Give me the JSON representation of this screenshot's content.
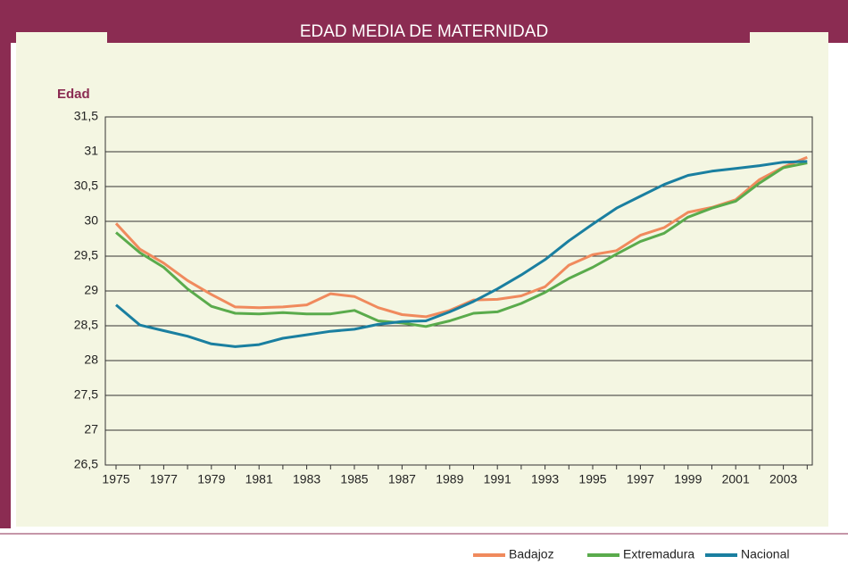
{
  "chart_data": {
    "type": "line",
    "title": "EDAD MEDIA DE MATERNIDAD",
    "y_label": "Edad",
    "categories": [
      "1975",
      null,
      "1977",
      null,
      "1979",
      null,
      "1981",
      null,
      "1983",
      null,
      "1985",
      null,
      "1987",
      null,
      "1989",
      null,
      "1991",
      null,
      "1993",
      null,
      "1995",
      null,
      "1997",
      null,
      "1999",
      null,
      "2001",
      null,
      "2003",
      null
    ],
    "series": [
      {
        "name": "Badajoz",
        "color": "#f08a5d",
        "values": [
          29.97,
          29.6,
          29.4,
          29.15,
          28.95,
          28.77,
          28.76,
          28.77,
          28.8,
          28.96,
          28.92,
          28.76,
          28.66,
          28.63,
          28.72,
          28.87,
          28.88,
          28.93,
          29.06,
          29.37,
          29.52,
          29.58,
          29.8,
          29.91,
          30.13,
          30.2,
          30.31,
          30.6,
          30.78,
          30.92
        ]
      },
      {
        "name": "Extremadura",
        "color": "#5aab4c",
        "values": [
          29.84,
          29.55,
          29.34,
          29.03,
          28.78,
          28.68,
          28.67,
          28.69,
          28.67,
          28.67,
          28.72,
          28.57,
          28.54,
          28.49,
          28.57,
          28.68,
          28.7,
          28.82,
          28.98,
          29.18,
          29.34,
          29.53,
          29.71,
          29.83,
          30.06,
          30.19,
          30.29,
          30.55,
          30.77,
          30.84
        ]
      },
      {
        "name": "Nacional",
        "color": "#1a7fa0",
        "values": [
          28.8,
          28.51,
          28.43,
          28.35,
          28.24,
          28.2,
          28.23,
          28.32,
          28.37,
          28.42,
          28.45,
          28.52,
          28.56,
          28.57,
          28.7,
          28.85,
          29.03,
          29.23,
          29.45,
          29.72,
          29.96,
          30.19,
          30.36,
          30.53,
          30.66,
          30.72,
          30.76,
          30.8,
          30.85,
          30.86
        ]
      }
    ],
    "ylim": [
      26.5,
      31.5
    ],
    "yticks": [
      {
        "value": 26.5,
        "label": "26,5"
      },
      27,
      {
        "value": 27.5,
        "label": "27,5"
      },
      28,
      {
        "value": 28.5,
        "label": "28,5"
      },
      29,
      {
        "value": 29.5,
        "label": "29,5"
      },
      30,
      {
        "value": 30.5,
        "label": "30,5"
      },
      31,
      {
        "value": 31.5,
        "label": "31,5"
      }
    ],
    "grid": true,
    "legend": "bottom-right"
  }
}
